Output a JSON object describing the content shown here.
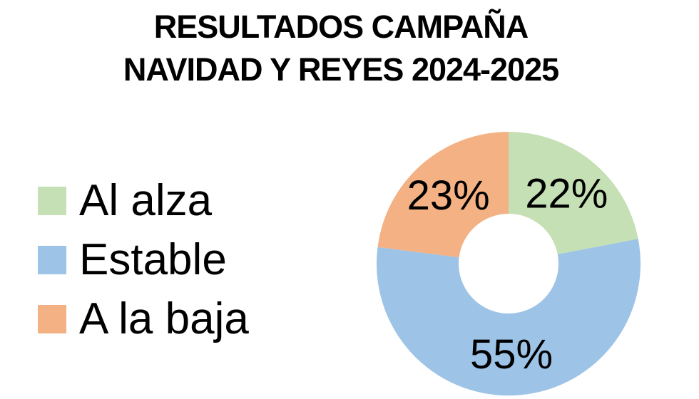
{
  "chart_data": {
    "type": "pie",
    "subtype": "donut",
    "title_lines": [
      "RESULTADOS CAMPAÑA",
      "NAVIDAD Y REYES 2024-2025"
    ],
    "categories": [
      "Al alza",
      "Estable",
      "A la baja"
    ],
    "values": [
      22,
      55,
      23
    ],
    "labels": [
      "22%",
      "55%",
      "23%"
    ],
    "colors": [
      "#c5e0b4",
      "#9dc3e6",
      "#f4b183"
    ],
    "label_color": "#000000",
    "title_color": "#000000",
    "background": "#ffffff",
    "start_angle_deg": 0,
    "direction": "clockwise",
    "donut_hole_ratio": 0.38,
    "legend_position": "left",
    "grid": false
  }
}
